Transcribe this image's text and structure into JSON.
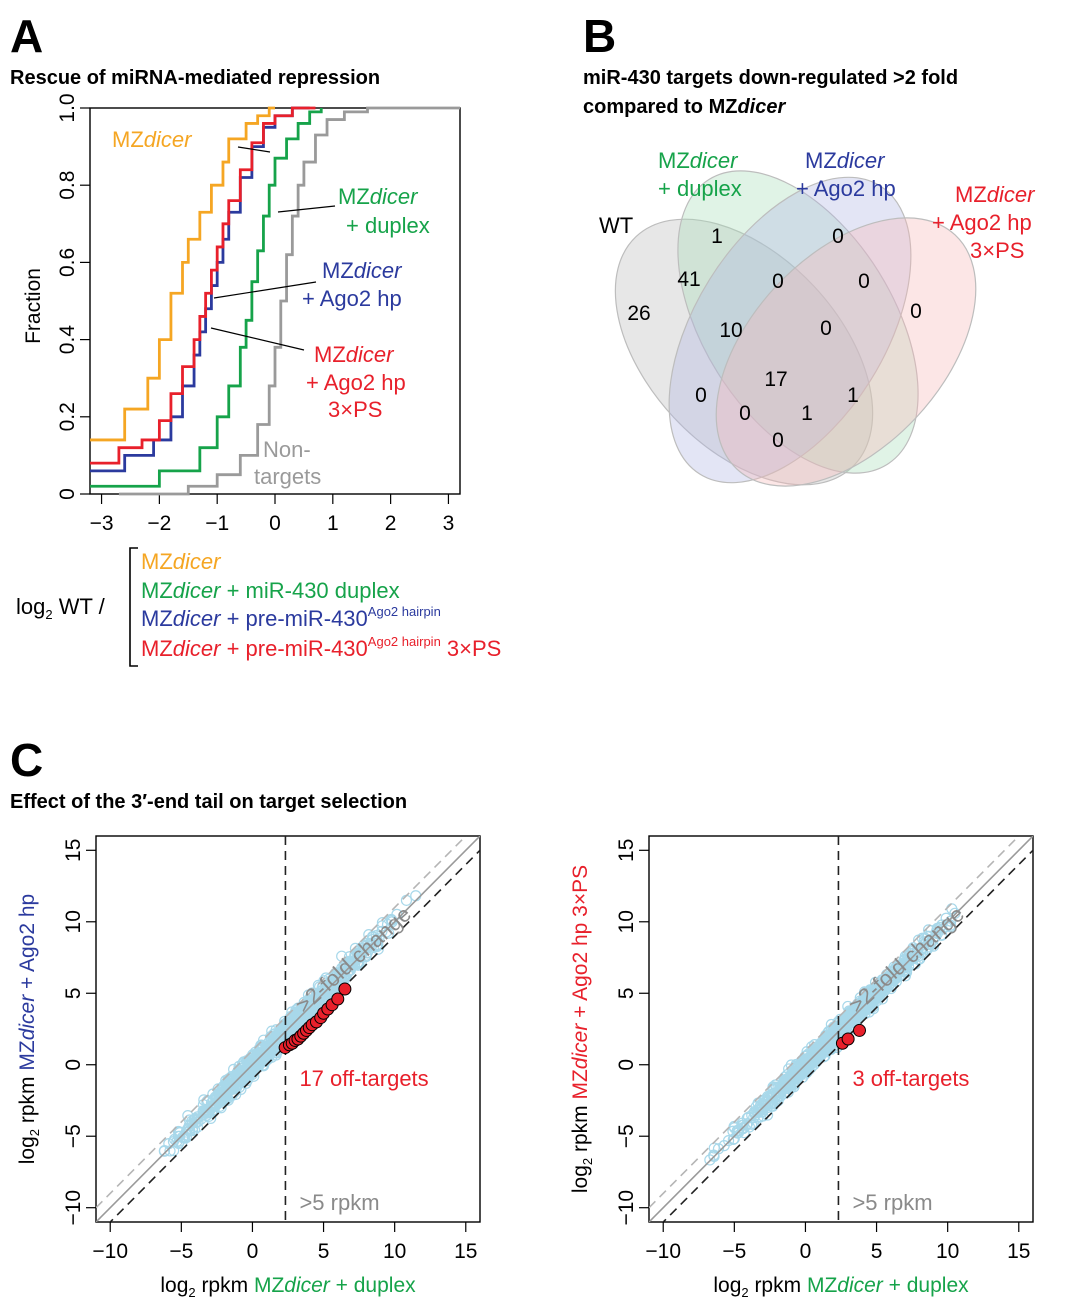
{
  "colors": {
    "mzdicer": "#f5a623",
    "duplex": "#16a34a",
    "ago2hp": "#2b3a9e",
    "ago2hp3xps": "#e8202b",
    "nontargets": "#9a9a9a",
    "scatter_point": "#a8d8ea",
    "offtarget": "#e8202b"
  },
  "panelA": {
    "letter": "A",
    "title": "Rescue of miRNA-mediated repression",
    "legend_prefix": "log",
    "legend_prefix_sub": "2",
    "legend_prefix_tail": " WT /",
    "legend": [
      {
        "a": "MZ",
        "b": "dicer",
        "c": "",
        "sup": "",
        "d": "",
        "color_key": "mzdicer"
      },
      {
        "a": "MZ",
        "b": "dicer",
        "c": " + miR-430 duplex",
        "sup": "",
        "d": "",
        "color_key": "duplex"
      },
      {
        "a": "MZ",
        "b": "dicer",
        "c": " + pre-miR-430",
        "sup": "Ago2 hairpin",
        "d": "",
        "color_key": "ago2hp"
      },
      {
        "a": "MZ",
        "b": "dicer",
        "c": " + pre-miR-430",
        "sup": "Ago2 hairpin",
        "d": " 3×PS",
        "color_key": "ago2hp3xps"
      }
    ],
    "curve_labels": {
      "mzdicer": {
        "a": "MZ",
        "b": "dicer"
      },
      "duplex": {
        "l1a": "MZ",
        "l1b": "dicer",
        "l2": "+ duplex"
      },
      "ago2hp": {
        "l1a": "MZ",
        "l1b": "dicer",
        "l2": "+ Ago2 hp"
      },
      "ago2hp3xps": {
        "l1a": "MZ",
        "l1b": "dicer",
        "l2": "+ Ago2 hp",
        "l3": "3×PS"
      },
      "nontargets": {
        "l1": "Non-",
        "l2": "targets"
      }
    }
  },
  "panelB": {
    "letter": "B",
    "title_line1": "miR-430 targets down-regulated >2 fold",
    "title_line2a": "compared to MZ",
    "title_line2b": "dicer",
    "sets": {
      "wt": "WT",
      "duplex": {
        "a": "MZ",
        "b": "dicer",
        "l2": "+ duplex"
      },
      "ago2hp": {
        "a": "MZ",
        "b": "dicer",
        "l2": "+ Ago2 hp"
      },
      "ago2hp3xps": {
        "a": "MZ",
        "b": "dicer",
        "l2": "+ Ago2 hp",
        "l3": "3×PS"
      }
    },
    "counts": [
      "1",
      "0",
      "0",
      "26",
      "41",
      "0",
      "0",
      "10",
      "0",
      "0",
      "17",
      "0",
      "1",
      "1",
      "0"
    ]
  },
  "panelC": {
    "letter": "C",
    "title": "Effect of the 3′-end tail on target selection",
    "fold_label": ">2-fold change",
    "rpkm_label": ">5 rpkm",
    "xlabel": {
      "p": "log",
      "sub": "2",
      "q": " rpkm ",
      "a": "MZ",
      "b": "dicer",
      "c": " + duplex"
    },
    "left": {
      "ylabel": {
        "p": "log",
        "sub": "2",
        "q": " rpkm ",
        "a": "MZ",
        "b": "dicer",
        "c": " + Ago2 hp",
        "color_key": "ago2hp"
      },
      "offtarget_label": "17 off-targets"
    },
    "right": {
      "ylabel": {
        "p": "log",
        "sub": "2",
        "q": " rpkm ",
        "a": "MZ",
        "b": "dicer",
        "c": " + Ago2 hp 3×PS",
        "color_key": "ago2hp3xps"
      },
      "offtarget_label": "3 off-targets"
    }
  },
  "chart_data": [
    {
      "type": "line",
      "title": "Rescue of miRNA-mediated repression",
      "ylabel": "Fraction",
      "xlabel": "log2 WT /",
      "xlim": [
        -3.2,
        3.2
      ],
      "ylim": [
        0,
        1
      ],
      "x_ticks": [
        -3,
        -2,
        -1,
        0,
        1,
        2,
        3
      ],
      "y_ticks": [
        0,
        0.2,
        0.4,
        0.6,
        0.8,
        1.0
      ],
      "series": [
        {
          "name": "MZdicer",
          "color_key": "mzdicer",
          "x": [
            -3.2,
            -2.6,
            -2.2,
            -2.0,
            -1.8,
            -1.6,
            -1.5,
            -1.3,
            -1.1,
            -0.9,
            -0.8,
            -0.5,
            -0.3,
            -0.1,
            0.0
          ],
          "y": [
            0.14,
            0.22,
            0.3,
            0.4,
            0.52,
            0.6,
            0.66,
            0.73,
            0.8,
            0.86,
            0.92,
            0.96,
            0.98,
            1.0,
            1.0
          ]
        },
        {
          "name": "MZdicer + miR-430 duplex",
          "color_key": "duplex",
          "x": [
            -3.2,
            -2.0,
            -1.3,
            -1.0,
            -0.8,
            -0.6,
            -0.5,
            -0.4,
            -0.3,
            -0.2,
            -0.1,
            0.0,
            0.2,
            0.4,
            0.6,
            0.8
          ],
          "y": [
            0.02,
            0.06,
            0.12,
            0.2,
            0.28,
            0.38,
            0.45,
            0.55,
            0.63,
            0.72,
            0.8,
            0.87,
            0.92,
            0.96,
            0.99,
            1.0
          ]
        },
        {
          "name": "MZdicer + pre-miR-430 Ago2 hairpin",
          "color_key": "ago2hp",
          "x": [
            -3.2,
            -2.6,
            -2.1,
            -1.8,
            -1.6,
            -1.4,
            -1.3,
            -1.2,
            -1.1,
            -1.0,
            -0.9,
            -0.8,
            -0.6,
            -0.4,
            -0.2,
            0.0,
            0.3,
            0.6
          ],
          "y": [
            0.06,
            0.1,
            0.14,
            0.2,
            0.28,
            0.36,
            0.42,
            0.48,
            0.54,
            0.6,
            0.66,
            0.73,
            0.82,
            0.9,
            0.95,
            0.98,
            1.0,
            1.0
          ]
        },
        {
          "name": "MZdicer + pre-miR-430 Ago2 hairpin 3×PS",
          "color_key": "ago2hp3xps",
          "x": [
            -3.2,
            -2.7,
            -2.3,
            -2.0,
            -1.8,
            -1.6,
            -1.4,
            -1.3,
            -1.2,
            -1.1,
            -1.0,
            -0.9,
            -0.8,
            -0.6,
            -0.4,
            -0.2,
            0.0,
            0.3,
            0.7
          ],
          "y": [
            0.08,
            0.12,
            0.14,
            0.19,
            0.26,
            0.33,
            0.4,
            0.46,
            0.52,
            0.58,
            0.64,
            0.7,
            0.76,
            0.84,
            0.91,
            0.96,
            0.98,
            1.0,
            1.0
          ]
        },
        {
          "name": "Non-targets",
          "color_key": "nontargets",
          "x": [
            -2.7,
            -1.5,
            -1.0,
            -0.6,
            -0.3,
            -0.1,
            0.0,
            0.1,
            0.2,
            0.3,
            0.4,
            0.5,
            0.7,
            0.9,
            1.2,
            1.6,
            2.2,
            3.2
          ],
          "y": [
            0.0,
            0.02,
            0.05,
            0.1,
            0.18,
            0.28,
            0.38,
            0.5,
            0.62,
            0.72,
            0.8,
            0.86,
            0.93,
            0.97,
            0.99,
            1.0,
            1.0,
            1.0
          ]
        }
      ]
    },
    {
      "type": "table",
      "title": "miR-430 targets down-regulated >2 fold compared to MZdicer",
      "sets": [
        "WT",
        "MZdicer + duplex",
        "MZdicer + Ago2 hp",
        "MZdicer + Ago2 hp 3×PS"
      ],
      "regions": [
        {
          "sets": [
            "MZdicer + duplex"
          ],
          "count": 1
        },
        {
          "sets": [
            "MZdicer + Ago2 hp"
          ],
          "count": 0
        },
        {
          "sets": [
            "MZdicer + Ago2 hp 3×PS"
          ],
          "count": 0
        },
        {
          "sets": [
            "WT"
          ],
          "count": 26
        },
        {
          "sets": [
            "WT",
            "MZdicer + duplex"
          ],
          "count": 41
        },
        {
          "sets": [
            "MZdicer + duplex",
            "MZdicer + Ago2 hp"
          ],
          "count": 0
        },
        {
          "sets": [
            "MZdicer + Ago2 hp",
            "MZdicer + Ago2 hp 3×PS"
          ],
          "count": 0
        },
        {
          "sets": [
            "WT",
            "MZdicer + duplex",
            "MZdicer + Ago2 hp"
          ],
          "count": 10
        },
        {
          "sets": [
            "MZdicer + duplex",
            "MZdicer + Ago2 hp",
            "MZdicer + Ago2 hp 3×PS"
          ],
          "count": 0
        },
        {
          "sets": [
            "WT",
            "MZdicer + Ago2 hp"
          ],
          "count": 0
        },
        {
          "sets": [
            "WT",
            "MZdicer + duplex",
            "MZdicer + Ago2 hp",
            "MZdicer + Ago2 hp 3×PS"
          ],
          "count": 17
        },
        {
          "sets": [
            "WT",
            "MZdicer + Ago2 hp",
            "MZdicer + Ago2 hp 3×PS"
          ],
          "count": 0
        },
        {
          "sets": [
            "WT",
            "MZdicer + duplex",
            "MZdicer + Ago2 hp 3×PS"
          ],
          "count": 1
        },
        {
          "sets": [
            "MZdicer + duplex",
            "MZdicer + Ago2 hp 3×PS"
          ],
          "count": 1
        },
        {
          "sets": [
            "WT",
            "MZdicer + Ago2 hp 3×PS"
          ],
          "count": 0
        }
      ]
    },
    {
      "type": "scatter",
      "xlabel": "log2 rpkm MZdicer + duplex",
      "ylabel": "log2 rpkm MZdicer + Ago2 hp",
      "xlim": [
        -11,
        16
      ],
      "ylim": [
        -11,
        16
      ],
      "x_ticks": [
        -10,
        -5,
        0,
        5,
        10,
        15
      ],
      "y_ticks": [
        -10,
        -5,
        0,
        5,
        10,
        15
      ],
      "reference_lines": {
        "identity": true,
        "twofold": 1,
        "rpkm_cutoff_x": 2.32
      },
      "annotation": "17 off-targets",
      "offtargets": {
        "x": [
          2.3,
          2.6,
          2.8,
          3.0,
          3.2,
          3.4,
          3.6,
          3.8,
          4.0,
          4.2,
          4.5,
          4.8,
          5.0,
          5.3,
          5.6,
          6.0,
          6.5
        ],
        "y": [
          1.2,
          1.4,
          1.5,
          1.7,
          1.8,
          2.0,
          2.2,
          2.4,
          2.6,
          2.8,
          3.0,
          3.3,
          3.6,
          3.9,
          4.2,
          4.6,
          5.3
        ]
      },
      "cloud": {
        "x_range": [
          -8,
          12
        ],
        "y_offset_sd": 0.9
      }
    },
    {
      "type": "scatter",
      "xlabel": "log2 rpkm MZdicer + duplex",
      "ylabel": "log2 rpkm MZdicer + Ago2 hp 3×PS",
      "xlim": [
        -11,
        16
      ],
      "ylim": [
        -11,
        16
      ],
      "x_ticks": [
        -10,
        -5,
        0,
        5,
        10,
        15
      ],
      "y_ticks": [
        -10,
        -5,
        0,
        5,
        10,
        15
      ],
      "reference_lines": {
        "identity": true,
        "twofold": 1,
        "rpkm_cutoff_x": 2.32
      },
      "annotation": "3 off-targets",
      "offtargets": {
        "x": [
          2.6,
          3.0,
          3.8
        ],
        "y": [
          1.5,
          1.8,
          2.4
        ]
      },
      "cloud": {
        "x_range": [
          -8,
          12
        ],
        "y_offset_sd": 0.8
      }
    }
  ]
}
